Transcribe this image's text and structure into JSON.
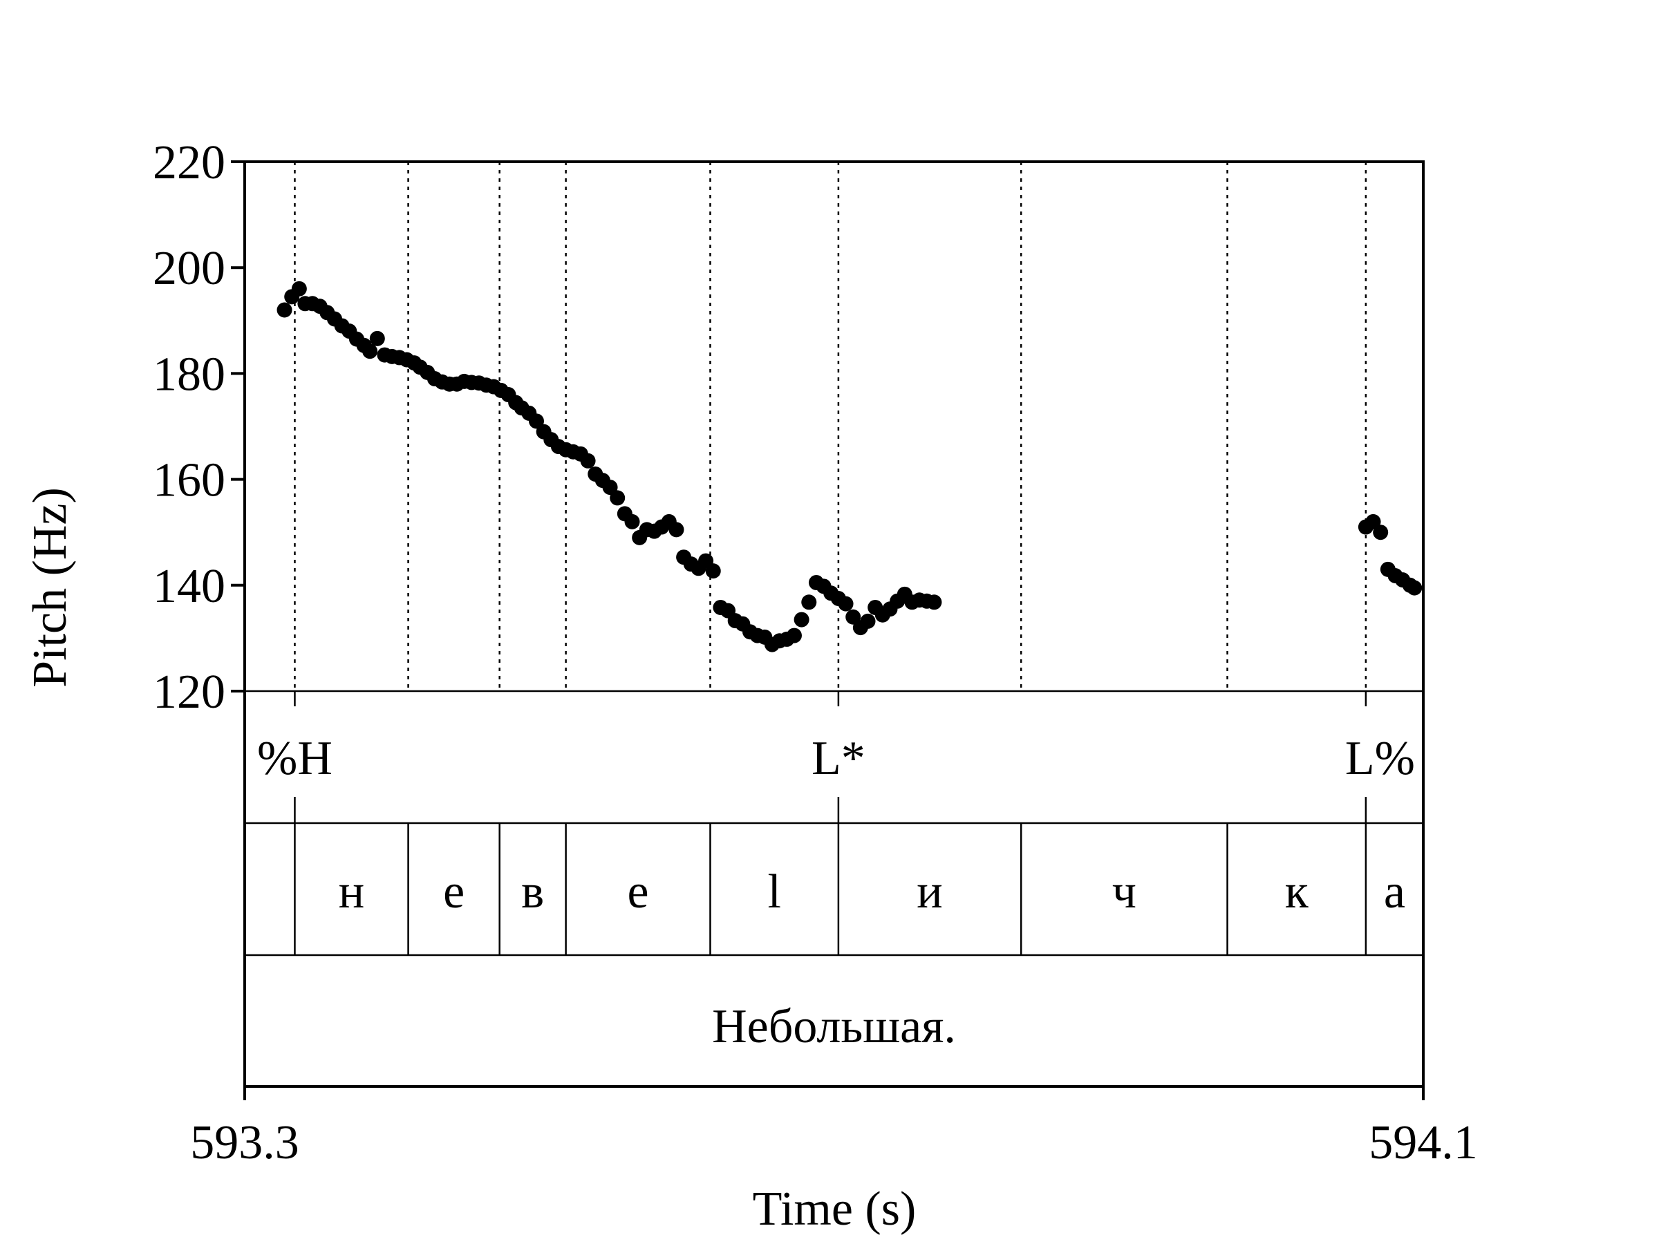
{
  "chart_data": {
    "type": "scatter",
    "xlabel": "Time (s)",
    "ylabel": "Pitch (Hz)",
    "xlim": [
      593.3,
      594.1
    ],
    "ylim": [
      120,
      220
    ],
    "x_tick_labels": [
      "593.3",
      "594.1"
    ],
    "y_ticks": [
      120,
      140,
      160,
      180,
      200,
      220
    ],
    "y_tick_labels": [
      "120",
      "140",
      "160",
      "180",
      "200",
      "220"
    ],
    "boundaries": [
      593.334,
      593.411,
      593.473,
      593.518,
      593.616,
      593.703,
      593.827,
      593.967,
      594.061
    ],
    "tones": [
      {
        "label": "%H",
        "t": 593.334
      },
      {
        "label": "L*",
        "t": 593.703
      },
      {
        "label": "L%",
        "t": 594.061
      }
    ],
    "tone_marks": [
      593.334,
      593.703,
      594.061
    ],
    "segments": [
      {
        "label": "",
        "start": 593.3,
        "end": 593.334
      },
      {
        "label": "н",
        "start": 593.334,
        "end": 593.411
      },
      {
        "label": "е",
        "start": 593.411,
        "end": 593.473
      },
      {
        "label": "в",
        "start": 593.473,
        "end": 593.518
      },
      {
        "label": "е",
        "start": 593.518,
        "end": 593.616
      },
      {
        "label": "l",
        "start": 593.616,
        "end": 593.703
      },
      {
        "label": "и",
        "start": 593.703,
        "end": 593.827
      },
      {
        "label": "ч",
        "start": 593.827,
        "end": 593.967
      },
      {
        "label": "к",
        "start": 593.967,
        "end": 594.061
      },
      {
        "label": "а",
        "start": 594.061,
        "end": 594.1
      }
    ],
    "word": "Небольшая.",
    "points": [
      [
        593.327,
        192
      ],
      [
        593.332,
        194.5
      ],
      [
        593.337,
        196
      ],
      [
        593.341,
        193.2
      ],
      [
        593.346,
        193.2
      ],
      [
        593.351,
        192.7
      ],
      [
        593.356,
        191.5
      ],
      [
        593.361,
        190.3
      ],
      [
        593.366,
        189
      ],
      [
        593.371,
        188
      ],
      [
        593.376,
        186.5
      ],
      [
        593.381,
        185.3
      ],
      [
        593.385,
        184.2
      ],
      [
        593.39,
        186.6
      ],
      [
        593.395,
        183.5
      ],
      [
        593.4,
        183.2
      ],
      [
        593.405,
        183
      ],
      [
        593.41,
        182.6
      ],
      [
        593.415,
        182
      ],
      [
        593.419,
        181.2
      ],
      [
        593.424,
        180.2
      ],
      [
        593.429,
        179
      ],
      [
        593.434,
        178.4
      ],
      [
        593.439,
        178
      ],
      [
        593.444,
        178
      ],
      [
        593.449,
        178.5
      ],
      [
        593.454,
        178.3
      ],
      [
        593.459,
        178.2
      ],
      [
        593.464,
        177.8
      ],
      [
        593.469,
        177.5
      ],
      [
        593.474,
        176.8
      ],
      [
        593.479,
        176
      ],
      [
        593.484,
        174.5
      ],
      [
        593.488,
        173.5
      ],
      [
        593.493,
        172.5
      ],
      [
        593.498,
        171
      ],
      [
        593.503,
        169
      ],
      [
        593.508,
        167.5
      ],
      [
        593.513,
        166.2
      ],
      [
        593.518,
        165.6
      ],
      [
        593.523,
        165.2
      ],
      [
        593.528,
        164.8
      ],
      [
        593.533,
        163.5
      ],
      [
        593.538,
        161
      ],
      [
        593.543,
        159.8
      ],
      [
        593.548,
        158.5
      ],
      [
        593.553,
        156.5
      ],
      [
        593.558,
        153.5
      ],
      [
        593.563,
        152
      ],
      [
        593.568,
        149
      ],
      [
        593.573,
        150.5
      ],
      [
        593.578,
        150.2
      ],
      [
        593.583,
        151
      ],
      [
        593.588,
        152
      ],
      [
        593.593,
        150.5
      ],
      [
        593.598,
        145.3
      ],
      [
        593.603,
        144
      ],
      [
        593.608,
        143.2
      ],
      [
        593.613,
        144.6
      ],
      [
        593.618,
        142.7
      ],
      [
        593.623,
        135.8
      ],
      [
        593.628,
        135.2
      ],
      [
        593.633,
        133.3
      ],
      [
        593.638,
        132.7
      ],
      [
        593.643,
        131.2
      ],
      [
        593.648,
        130.5
      ],
      [
        593.653,
        130.2
      ],
      [
        593.658,
        128.8
      ],
      [
        593.663,
        129.5
      ],
      [
        593.668,
        129.8
      ],
      [
        593.673,
        130.5
      ],
      [
        593.678,
        133.5
      ],
      [
        593.683,
        136.8
      ],
      [
        593.688,
        140.5
      ],
      [
        593.693,
        139.8
      ],
      [
        593.698,
        138.5
      ],
      [
        593.703,
        137.5
      ],
      [
        593.708,
        136.5
      ],
      [
        593.713,
        134
      ],
      [
        593.718,
        132
      ],
      [
        593.723,
        133.2
      ],
      [
        593.728,
        135.8
      ],
      [
        593.733,
        134.4
      ],
      [
        593.738,
        135.5
      ],
      [
        593.743,
        137
      ],
      [
        593.748,
        138.3
      ],
      [
        593.753,
        136.8
      ],
      [
        593.758,
        137.2
      ],
      [
        593.763,
        137
      ],
      [
        593.768,
        136.8
      ],
      [
        594.061,
        151
      ],
      [
        594.066,
        152
      ],
      [
        594.071,
        150
      ],
      [
        594.076,
        143
      ],
      [
        594.081,
        141.8
      ],
      [
        594.086,
        141
      ],
      [
        594.091,
        140
      ],
      [
        594.094,
        139.5
      ]
    ]
  }
}
